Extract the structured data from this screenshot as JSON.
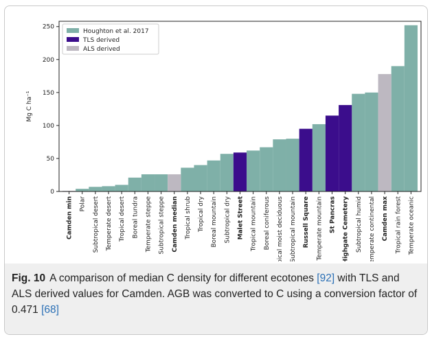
{
  "chart_data": {
    "type": "bar",
    "y_label": "Mg C ha⁻¹",
    "categories": [
      "Camden min",
      "Polar",
      "Subtropical desert",
      "Temperate desert",
      "Tropical desert",
      "Boreal tundra",
      "Temperate steppe",
      "Subtropical steppe",
      "Camden median",
      "Tropical shrub",
      "Tropical dry",
      "Boreal mountain",
      "Subtropical dry",
      "Malet Street",
      "Tropical mountain",
      "Boreal coniferous",
      "Tropical moist deciduous",
      "Subtropical mountain",
      "Russell Square",
      "Temperate mountain",
      "St Pancras",
      "Highgate Cemetery",
      "Subtropical humid",
      "Temperate continental",
      "Camden max",
      "Tropical rain forest",
      "Temperate oceanic"
    ],
    "series": [
      {
        "name": "Houghton et al. 2017",
        "color": "#7fb0a8",
        "values": [
          null,
          4,
          7,
          8,
          10,
          21,
          26,
          26,
          null,
          36,
          40,
          47,
          57,
          null,
          62,
          67,
          79,
          80,
          null,
          102,
          null,
          null,
          148,
          150,
          null,
          190,
          252
        ]
      },
      {
        "name": "TLS derived",
        "color": "#3b0d8c",
        "values": [
          null,
          null,
          null,
          null,
          null,
          null,
          null,
          null,
          null,
          null,
          null,
          null,
          null,
          59,
          null,
          null,
          null,
          null,
          95,
          null,
          115,
          131,
          null,
          null,
          null,
          null,
          null
        ]
      },
      {
        "name": "ALS derived",
        "color": "#bdb8c1",
        "values": [
          1,
          null,
          null,
          null,
          null,
          null,
          null,
          null,
          26,
          null,
          null,
          null,
          null,
          null,
          null,
          null,
          null,
          null,
          null,
          null,
          null,
          null,
          null,
          null,
          178,
          null,
          null
        ]
      }
    ],
    "ylim": [
      0,
      258
    ],
    "yticks": [
      0,
      50,
      100,
      150,
      200,
      250
    ],
    "legend": "upper left"
  },
  "caption": {
    "label": "Fig. 10",
    "parts": [
      {
        "text": "A comparison of median C density for different ecotones "
      },
      {
        "text": "[92]",
        "ref": true
      },
      {
        "text": " with TLS and ALS derived values for Camden. AGB was converted to C using a conversion factor of 0.471 "
      },
      {
        "text": "[68]",
        "ref": true
      }
    ]
  }
}
